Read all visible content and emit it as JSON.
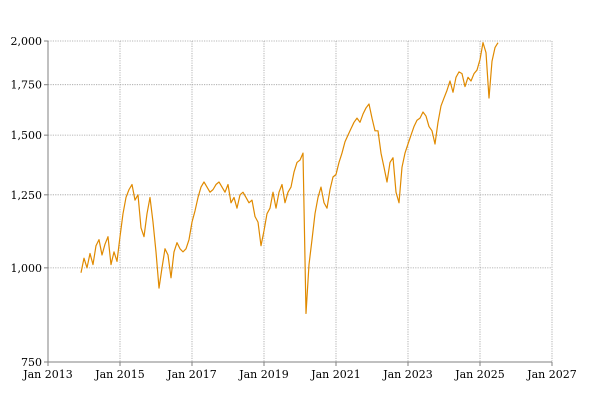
{
  "chart_data": {
    "type": "line",
    "title": "",
    "xlabel": "",
    "ylabel": "",
    "y_scale": "log",
    "ylim": [
      750,
      2000
    ],
    "xlim": [
      "2013-01",
      "2027-01"
    ],
    "grid": true,
    "legend": "none",
    "y_ticks": [
      {
        "value": 750,
        "label": "750"
      },
      {
        "value": 1000,
        "label": "1,000"
      },
      {
        "value": 1250,
        "label": "1,250"
      },
      {
        "value": 1500,
        "label": "1,500"
      },
      {
        "value": 1750,
        "label": "1,750"
      },
      {
        "value": 2000,
        "label": "2,000"
      }
    ],
    "x_ticks": [
      {
        "value": "2013-01",
        "label": "Jan 2013"
      },
      {
        "value": "2015-01",
        "label": "Jan 2015"
      },
      {
        "value": "2017-01",
        "label": "Jan 2017"
      },
      {
        "value": "2019-01",
        "label": "Jan 2019"
      },
      {
        "value": "2021-01",
        "label": "Jan 2021"
      },
      {
        "value": "2023-01",
        "label": "Jan 2023"
      },
      {
        "value": "2025-01",
        "label": "Jan 2025"
      },
      {
        "value": "2027-01",
        "label": "Jan 2027"
      }
    ],
    "series": [
      {
        "color": "#e08a00",
        "points": [
          [
            "2013-12",
            985
          ],
          [
            "2014-01",
            1030
          ],
          [
            "2014-02",
            1000
          ],
          [
            "2014-03",
            1045
          ],
          [
            "2014-04",
            1010
          ],
          [
            "2014-05",
            1070
          ],
          [
            "2014-06",
            1090
          ],
          [
            "2014-07",
            1040
          ],
          [
            "2014-08",
            1075
          ],
          [
            "2014-09",
            1100
          ],
          [
            "2014-10",
            1010
          ],
          [
            "2014-11",
            1050
          ],
          [
            "2014-12",
            1020
          ],
          [
            "2015-01",
            1100
          ],
          [
            "2015-02",
            1180
          ],
          [
            "2015-03",
            1240
          ],
          [
            "2015-04",
            1270
          ],
          [
            "2015-05",
            1290
          ],
          [
            "2015-06",
            1230
          ],
          [
            "2015-07",
            1250
          ],
          [
            "2015-08",
            1130
          ],
          [
            "2015-09",
            1100
          ],
          [
            "2015-10",
            1180
          ],
          [
            "2015-11",
            1240
          ],
          [
            "2015-12",
            1150
          ],
          [
            "2016-01",
            1050
          ],
          [
            "2016-02",
            940
          ],
          [
            "2016-03",
            1000
          ],
          [
            "2016-04",
            1060
          ],
          [
            "2016-05",
            1040
          ],
          [
            "2016-06",
            970
          ],
          [
            "2016-07",
            1050
          ],
          [
            "2016-08",
            1080
          ],
          [
            "2016-09",
            1060
          ],
          [
            "2016-10",
            1050
          ],
          [
            "2016-11",
            1060
          ],
          [
            "2016-12",
            1090
          ],
          [
            "2017-01",
            1150
          ],
          [
            "2017-02",
            1190
          ],
          [
            "2017-03",
            1240
          ],
          [
            "2017-04",
            1280
          ],
          [
            "2017-05",
            1300
          ],
          [
            "2017-06",
            1280
          ],
          [
            "2017-07",
            1260
          ],
          [
            "2017-08",
            1270
          ],
          [
            "2017-09",
            1290
          ],
          [
            "2017-10",
            1300
          ],
          [
            "2017-11",
            1280
          ],
          [
            "2017-12",
            1260
          ],
          [
            "2018-01",
            1290
          ],
          [
            "2018-02",
            1220
          ],
          [
            "2018-03",
            1240
          ],
          [
            "2018-04",
            1200
          ],
          [
            "2018-05",
            1250
          ],
          [
            "2018-06",
            1260
          ],
          [
            "2018-07",
            1240
          ],
          [
            "2018-08",
            1220
          ],
          [
            "2018-09",
            1230
          ],
          [
            "2018-10",
            1170
          ],
          [
            "2018-11",
            1150
          ],
          [
            "2018-12",
            1070
          ],
          [
            "2019-01",
            1120
          ],
          [
            "2019-02",
            1180
          ],
          [
            "2019-03",
            1200
          ],
          [
            "2019-04",
            1260
          ],
          [
            "2019-05",
            1200
          ],
          [
            "2019-06",
            1260
          ],
          [
            "2019-07",
            1290
          ],
          [
            "2019-08",
            1220
          ],
          [
            "2019-09",
            1260
          ],
          [
            "2019-10",
            1280
          ],
          [
            "2019-11",
            1340
          ],
          [
            "2019-12",
            1380
          ],
          [
            "2020-01",
            1390
          ],
          [
            "2020-02",
            1420
          ],
          [
            "2020-03",
            870
          ],
          [
            "2020-04",
            1010
          ],
          [
            "2020-05",
            1090
          ],
          [
            "2020-06",
            1180
          ],
          [
            "2020-07",
            1240
          ],
          [
            "2020-08",
            1280
          ],
          [
            "2020-09",
            1220
          ],
          [
            "2020-10",
            1200
          ],
          [
            "2020-11",
            1270
          ],
          [
            "2020-12",
            1320
          ],
          [
            "2021-01",
            1330
          ],
          [
            "2021-02",
            1380
          ],
          [
            "2021-03",
            1420
          ],
          [
            "2021-04",
            1470
          ],
          [
            "2021-05",
            1500
          ],
          [
            "2021-06",
            1530
          ],
          [
            "2021-07",
            1560
          ],
          [
            "2021-08",
            1580
          ],
          [
            "2021-09",
            1560
          ],
          [
            "2021-10",
            1600
          ],
          [
            "2021-11",
            1630
          ],
          [
            "2021-12",
            1650
          ],
          [
            "2022-01",
            1580
          ],
          [
            "2022-02",
            1520
          ],
          [
            "2022-03",
            1520
          ],
          [
            "2022-04",
            1420
          ],
          [
            "2022-05",
            1360
          ],
          [
            "2022-06",
            1300
          ],
          [
            "2022-07",
            1380
          ],
          [
            "2022-08",
            1400
          ],
          [
            "2022-09",
            1260
          ],
          [
            "2022-10",
            1220
          ],
          [
            "2022-11",
            1360
          ],
          [
            "2022-12",
            1420
          ],
          [
            "2023-01",
            1460
          ],
          [
            "2023-02",
            1500
          ],
          [
            "2023-03",
            1540
          ],
          [
            "2023-04",
            1570
          ],
          [
            "2023-05",
            1580
          ],
          [
            "2023-06",
            1610
          ],
          [
            "2023-07",
            1590
          ],
          [
            "2023-08",
            1540
          ],
          [
            "2023-09",
            1520
          ],
          [
            "2023-10",
            1460
          ],
          [
            "2023-11",
            1560
          ],
          [
            "2023-12",
            1640
          ],
          [
            "2024-01",
            1680
          ],
          [
            "2024-02",
            1720
          ],
          [
            "2024-03",
            1770
          ],
          [
            "2024-04",
            1710
          ],
          [
            "2024-05",
            1790
          ],
          [
            "2024-06",
            1820
          ],
          [
            "2024-07",
            1810
          ],
          [
            "2024-08",
            1740
          ],
          [
            "2024-09",
            1790
          ],
          [
            "2024-10",
            1770
          ],
          [
            "2024-11",
            1810
          ],
          [
            "2024-12",
            1830
          ],
          [
            "2025-01",
            1890
          ],
          [
            "2025-02",
            1990
          ],
          [
            "2025-03",
            1930
          ],
          [
            "2025-04",
            1680
          ],
          [
            "2025-05",
            1880
          ],
          [
            "2025-06",
            1960
          ],
          [
            "2025-07",
            1990
          ]
        ]
      }
    ]
  }
}
